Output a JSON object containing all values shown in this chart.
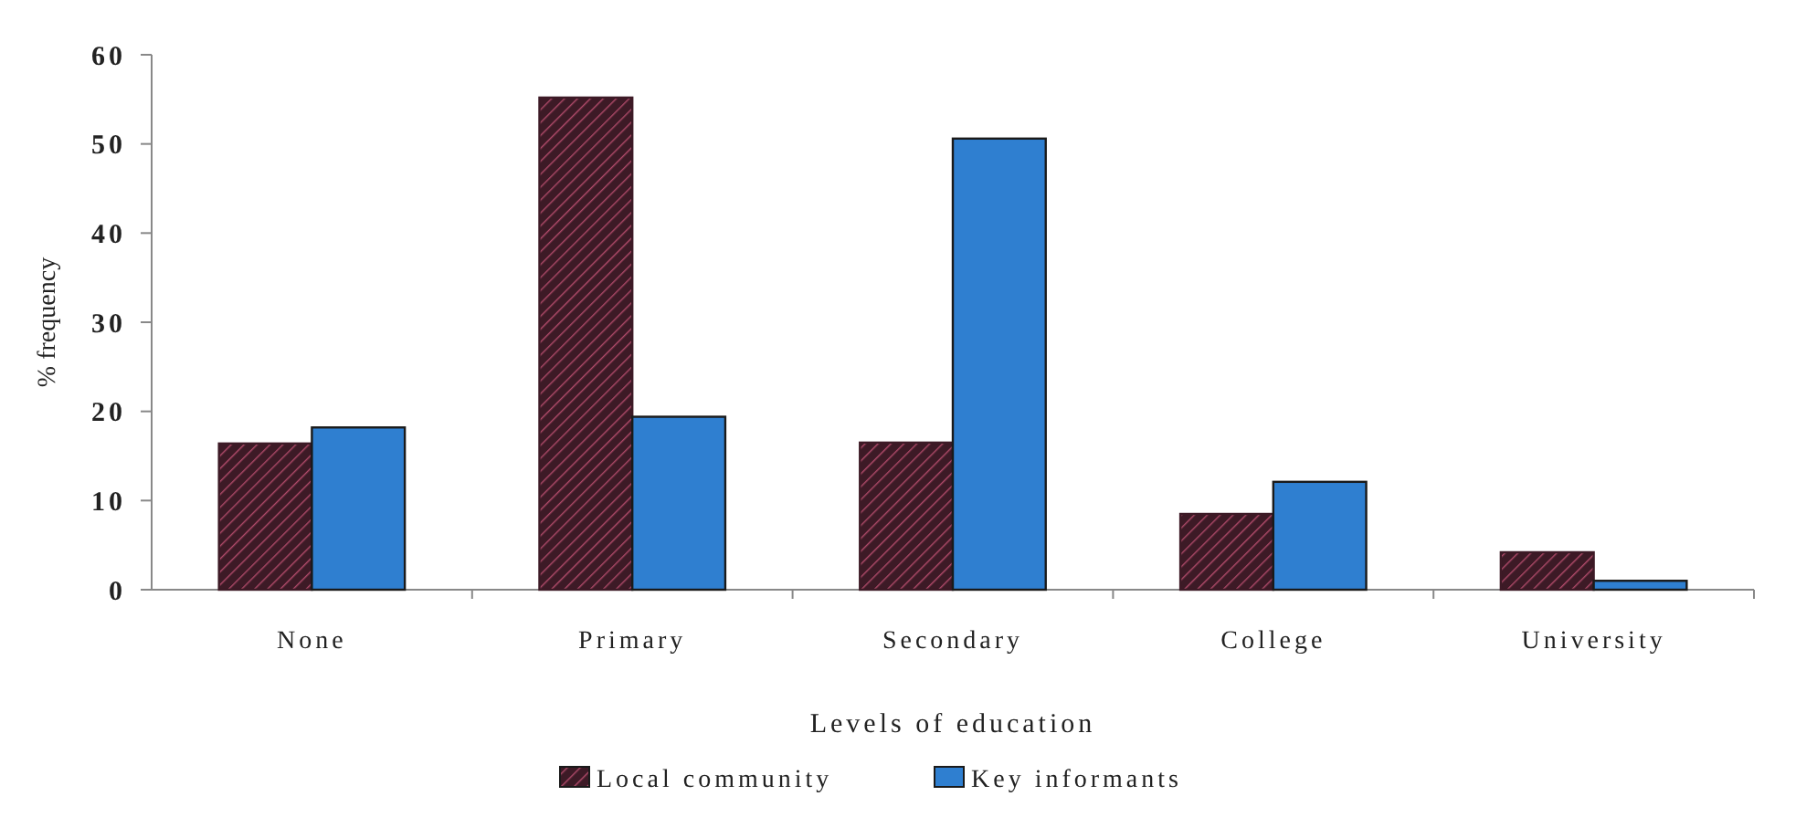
{
  "chart_data": {
    "type": "bar",
    "xlabel": "Levels of education",
    "ylabel": "% frequency",
    "categories": [
      "None",
      "Primary",
      "Secondary",
      "College",
      "University"
    ],
    "series": [
      {
        "name": "Local community",
        "color": "#3d1a26",
        "values": [
          16.4,
          55.2,
          16.5,
          8.5,
          4.2
        ]
      },
      {
        "name": "Key informants",
        "color": "#2f7fd0",
        "values": [
          18.2,
          19.4,
          50.6,
          12.1,
          1.0
        ]
      }
    ],
    "ylim": [
      0,
      60
    ],
    "yticks": [
      0,
      10,
      20,
      30,
      40,
      50,
      60
    ],
    "grid": false,
    "legend": "bottom"
  }
}
